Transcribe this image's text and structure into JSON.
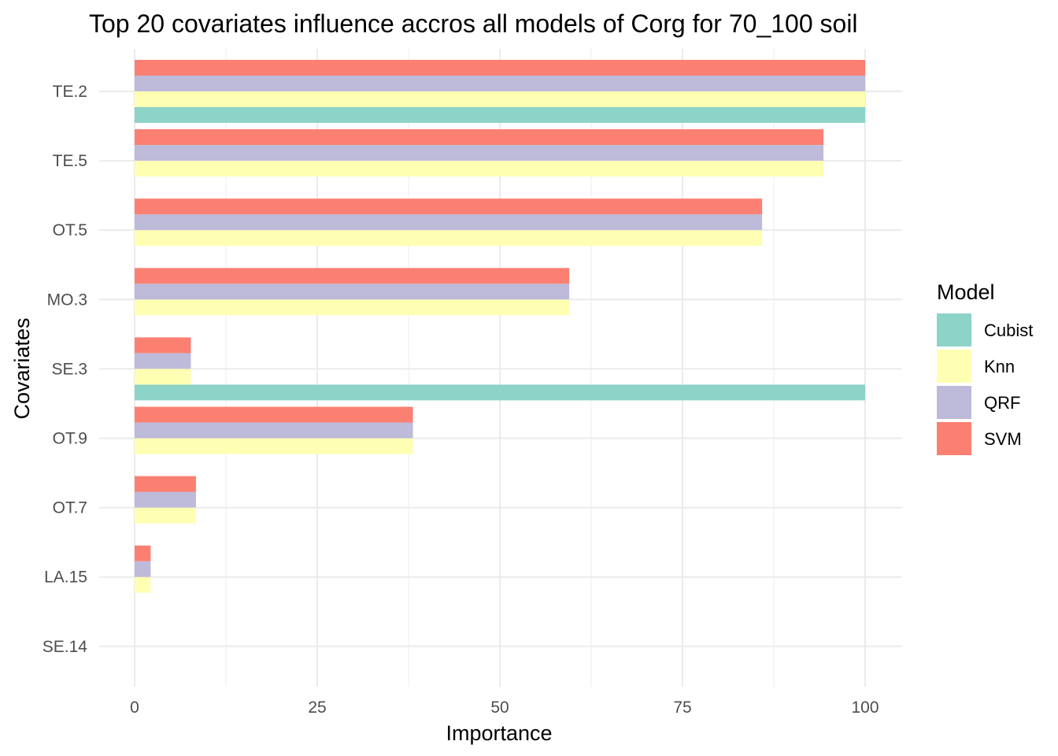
{
  "chart_data": {
    "type": "bar",
    "orientation": "horizontal",
    "title": "Top 20 covariates influence accros all models of Corg for 70_100 soil",
    "xlabel": "Importance",
    "ylabel": "Covariates",
    "xlim": [
      0,
      100
    ],
    "x_ticks": [
      "0",
      "25",
      "50",
      "75",
      "100"
    ],
    "grid": true,
    "legend": {
      "title": "Model",
      "position": "right"
    },
    "categories": [
      "TE.2",
      "TE.5",
      "OT.5",
      "MO.3",
      "SE.3",
      "OT.9",
      "OT.7",
      "LA.15",
      "SE.14"
    ],
    "series": [
      {
        "name": "Cubist",
        "color": "#8DD3C7",
        "values": [
          100,
          null,
          null,
          null,
          100,
          null,
          null,
          null,
          null
        ]
      },
      {
        "name": "Knn",
        "color": "#FFFFB3",
        "values": [
          100,
          94.3,
          85.9,
          59.5,
          7.7,
          38.1,
          8.4,
          2.2,
          0
        ]
      },
      {
        "name": "QRF",
        "color": "#BEBADA",
        "values": [
          100,
          94.3,
          85.9,
          59.5,
          7.7,
          38.1,
          8.4,
          2.2,
          0
        ]
      },
      {
        "name": "SVM",
        "color": "#FB8072",
        "values": [
          100,
          94.3,
          85.9,
          59.5,
          7.7,
          38.1,
          8.4,
          2.2,
          0
        ]
      }
    ]
  }
}
